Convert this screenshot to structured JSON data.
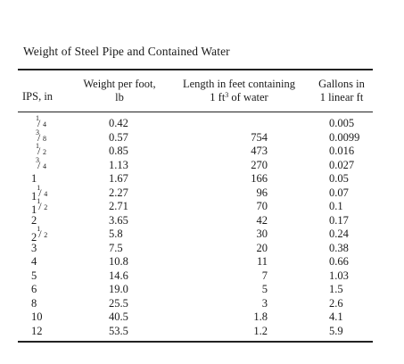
{
  "table": {
    "caption": "Weight of Steel Pipe and Contained Water",
    "headers": {
      "ips": "IPS, in",
      "weight_l1": "Weight per foot,",
      "weight_l2": "lb",
      "length_l1": "Length in feet containing",
      "length_l2_pre": "1 ft",
      "length_l2_sup": "3",
      "length_l2_post": " of water",
      "gallons_l1": "Gallons in",
      "gallons_l2": "1 linear ft"
    },
    "rows": [
      {
        "ips_whole": "",
        "ips_num": "1",
        "ips_den": "4",
        "weight": "0.42",
        "length": "",
        "gallons": "0.005"
      },
      {
        "ips_whole": "",
        "ips_num": "3",
        "ips_den": "8",
        "weight": "0.57",
        "length": "754",
        "gallons": "0.0099"
      },
      {
        "ips_whole": "",
        "ips_num": "1",
        "ips_den": "2",
        "weight": "0.85",
        "length": "473",
        "gallons": "0.016"
      },
      {
        "ips_whole": "",
        "ips_num": "3",
        "ips_den": "4",
        "weight": "1.13",
        "length": "270",
        "gallons": "0.027"
      },
      {
        "ips_whole": "1",
        "ips_num": "",
        "ips_den": "",
        "weight": "1.67",
        "length": "166",
        "gallons": "0.05"
      },
      {
        "ips_whole": "1",
        "ips_num": "1",
        "ips_den": "4",
        "weight": "2.27",
        "length": "96",
        "gallons": "0.07"
      },
      {
        "ips_whole": "1",
        "ips_num": "1",
        "ips_den": "2",
        "weight": "2.71",
        "length": "70",
        "gallons": "0.1"
      },
      {
        "ips_whole": "2",
        "ips_num": "",
        "ips_den": "",
        "weight": "3.65",
        "length": "42",
        "gallons": "0.17"
      },
      {
        "ips_whole": "2",
        "ips_num": "1",
        "ips_den": "2",
        "weight": "5.8",
        "length": "30",
        "gallons": "0.24"
      },
      {
        "ips_whole": "3",
        "ips_num": "",
        "ips_den": "",
        "weight": "7.5",
        "length": "20",
        "gallons": "0.38"
      },
      {
        "ips_whole": "4",
        "ips_num": "",
        "ips_den": "",
        "weight": "10.8",
        "length": "11",
        "gallons": "0.66"
      },
      {
        "ips_whole": "5",
        "ips_num": "",
        "ips_den": "",
        "weight": "14.6",
        "length": "7",
        "gallons": "1.03"
      },
      {
        "ips_whole": "6",
        "ips_num": "",
        "ips_den": "",
        "weight": "19.0",
        "length": "5",
        "gallons": "1.5"
      },
      {
        "ips_whole": "8",
        "ips_num": "",
        "ips_den": "",
        "weight": "25.5",
        "length": "3",
        "gallons": "2.6"
      },
      {
        "ips_whole": "10",
        "ips_num": "",
        "ips_den": "",
        "weight": "40.5",
        "length": "1.8",
        "gallons": "4.1"
      },
      {
        "ips_whole": "12",
        "ips_num": "",
        "ips_den": "",
        "weight": "53.5",
        "length": "1.2",
        "gallons": "5.9"
      }
    ]
  }
}
